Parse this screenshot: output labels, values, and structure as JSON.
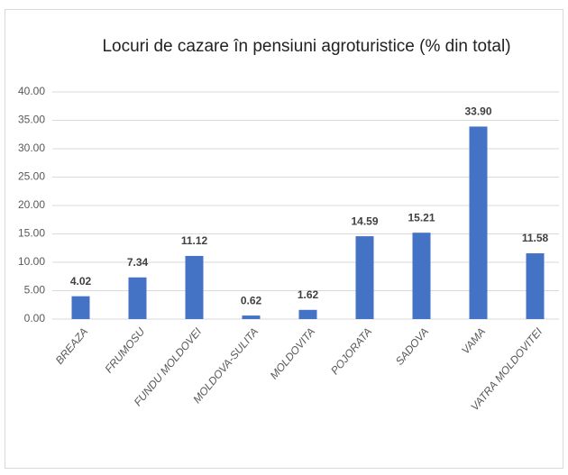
{
  "chart_data": {
    "type": "bar",
    "title": "Locuri de cazare în pensiuni agroturistice (% din total)",
    "categories": [
      "BREAZA",
      "FRUMOSU",
      "FUNDU MOLDOVEI",
      "MOLDOVA-SULITA",
      "MOLDOVITA",
      "POJORATA",
      "SADOVA",
      "VAMA",
      "VATRA MOLDOVITEI"
    ],
    "values": [
      4.02,
      7.34,
      11.12,
      0.62,
      1.62,
      14.59,
      15.21,
      33.9,
      11.58
    ],
    "value_labels": [
      "4.02",
      "7.34",
      "11.12",
      "0.62",
      "1.62",
      "14.59",
      "15.21",
      "33.90",
      "11.58"
    ],
    "color": "#4472c4",
    "ylim": [
      0,
      40
    ],
    "yticks": [
      {
        "value": 0,
        "label": "0.00"
      },
      {
        "value": 5,
        "label": "5.00"
      },
      {
        "value": 10,
        "label": "10.00"
      },
      {
        "value": 15,
        "label": "15.00"
      },
      {
        "value": 20,
        "label": "20.00"
      },
      {
        "value": 25,
        "label": "25.00"
      },
      {
        "value": 30,
        "label": "30.00"
      },
      {
        "value": 35,
        "label": "35.00"
      },
      {
        "value": 40,
        "label": "40.00"
      }
    ],
    "grid": true
  }
}
